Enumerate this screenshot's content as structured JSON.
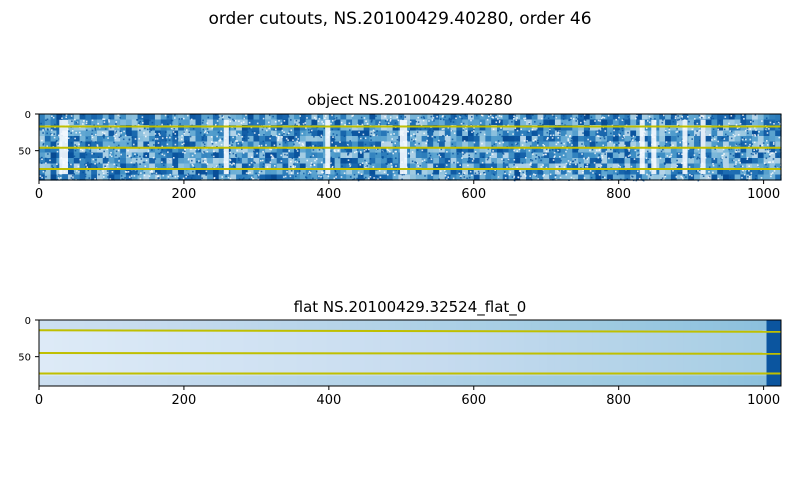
{
  "figure": {
    "title": "order cutouts, NS.20100429.40280, order 46"
  },
  "chart_data": [
    {
      "type": "heatmap",
      "title": "object NS.20100429.40280",
      "colormap": "Blues",
      "xlim": [
        0,
        1024
      ],
      "ylim": [
        90,
        0
      ],
      "xticks": [
        0,
        200,
        400,
        600,
        800,
        1000
      ],
      "yticks": [
        0,
        50
      ],
      "texture": "noisy",
      "bright_columns": [
        [
          28,
          40
        ],
        [
          255,
          262
        ],
        [
          395,
          402
        ],
        [
          498,
          508
        ],
        [
          829,
          836
        ],
        [
          845,
          852
        ],
        [
          888,
          895
        ],
        [
          913,
          920
        ]
      ],
      "trace_lines": [
        {
          "x": [
            0,
            1024
          ],
          "y": [
            17,
            17
          ]
        },
        {
          "x": [
            0,
            1024
          ],
          "y": [
            46,
            46
          ]
        },
        {
          "x": [
            0,
            1024
          ],
          "y": [
            75,
            75
          ]
        }
      ],
      "trace_color": "#bfbf00"
    },
    {
      "type": "heatmap",
      "title": "flat NS.20100429.32524_flat_0",
      "colormap": "Blues",
      "xlim": [
        0,
        1024
      ],
      "ylim": [
        90,
        0
      ],
      "xticks": [
        0,
        200,
        400,
        600,
        800,
        1000
      ],
      "yticks": [
        0,
        50
      ],
      "texture": "smooth",
      "dark_region_x": [
        1004,
        1024
      ],
      "trace_lines": [
        {
          "x": [
            0,
            1024
          ],
          "y": [
            14,
            16
          ]
        },
        {
          "x": [
            0,
            1024
          ],
          "y": [
            45,
            46
          ]
        },
        {
          "x": [
            0,
            1024
          ],
          "y": [
            73,
            73
          ]
        }
      ],
      "trace_color": "#bfbf00"
    }
  ]
}
